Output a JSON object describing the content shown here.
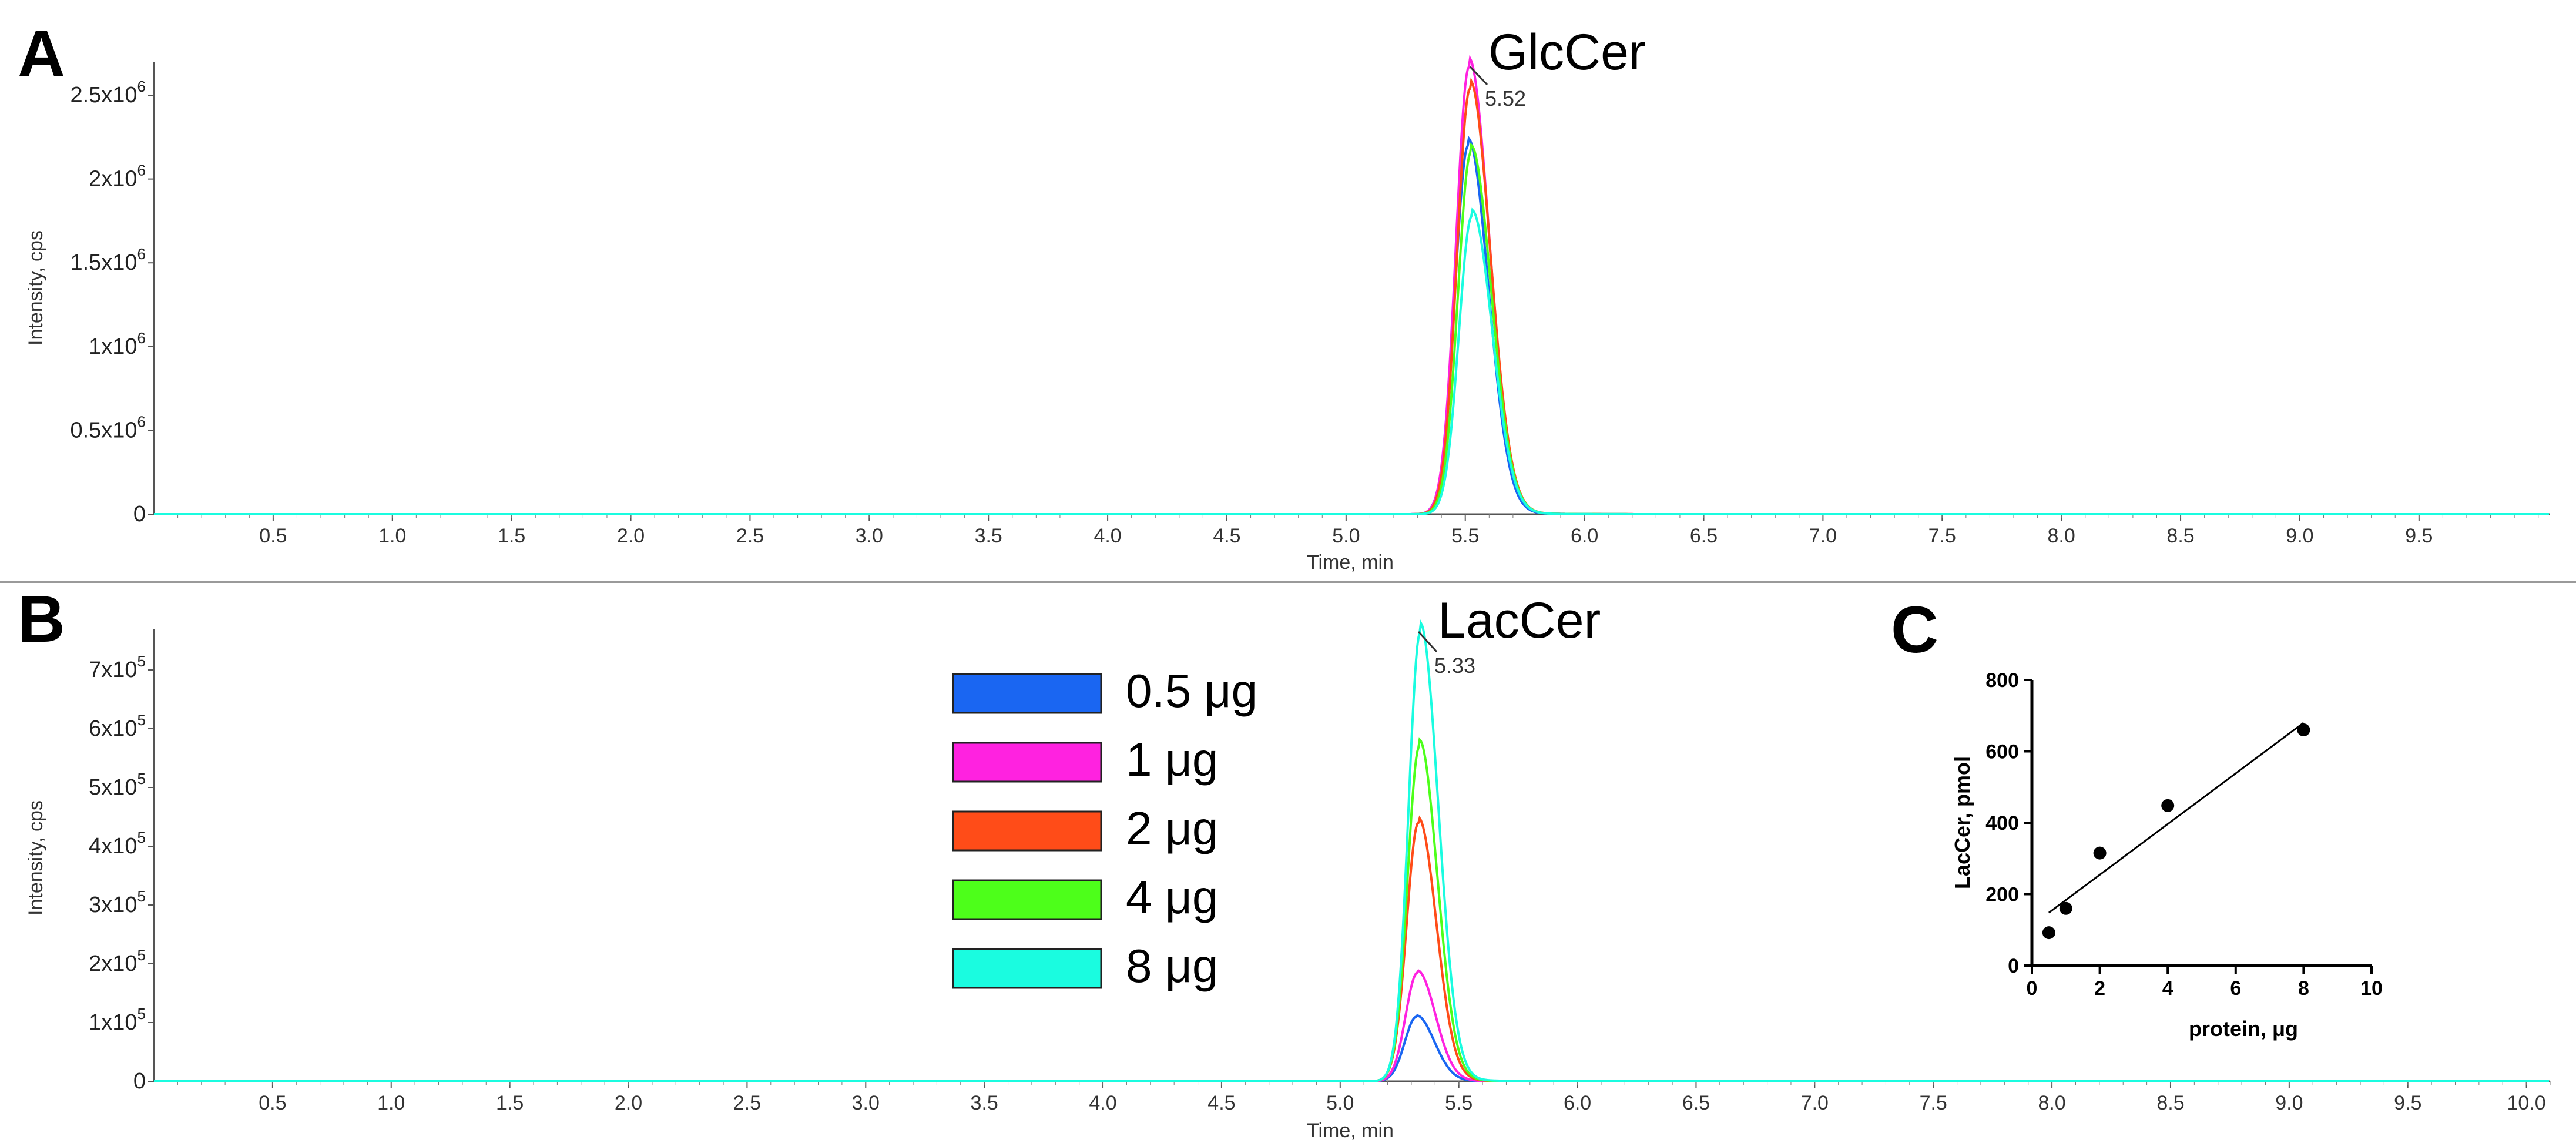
{
  "chart_data": [
    {
      "panel_label": "A",
      "type": "line",
      "title": "",
      "xlabel": "Time, min",
      "ylabel": "Intensity, cps",
      "xlim": [
        0,
        10.05
      ],
      "ylim": [
        0,
        2700000
      ],
      "x_ticks": [
        "0.5",
        "1.0",
        "1.5",
        "2.0",
        "2.5",
        "3.0",
        "3.5",
        "4.0",
        "4.5",
        "5.0",
        "5.5",
        "6.0",
        "6.5",
        "7.0",
        "7.5",
        "8.0",
        "8.5",
        "9.0",
        "9.5"
      ],
      "y_ticks": [
        {
          "value": 0,
          "base": "0",
          "exp": ""
        },
        {
          "value": 500000,
          "base": "0.5x10",
          "exp": "6"
        },
        {
          "value": 1000000,
          "base": "1x10",
          "exp": "6"
        },
        {
          "value": 1500000,
          "base": "1.5x10",
          "exp": "6"
        },
        {
          "value": 2000000,
          "base": "2x10",
          "exp": "6"
        },
        {
          "value": 2500000,
          "base": "2.5x10",
          "exp": "6"
        }
      ],
      "peak": {
        "name": "GlcCer",
        "rt": "5.52",
        "x": 5.52
      },
      "series": [
        {
          "name": "0.5 μg",
          "apex": 2200000
        },
        {
          "name": "1 μg",
          "apex": 2670000
        },
        {
          "name": "2 μg",
          "apex": 2540000
        },
        {
          "name": "4 μg",
          "apex": 2160000
        },
        {
          "name": "8 μg",
          "apex": 1780000
        }
      ]
    },
    {
      "panel_label": "B",
      "type": "line",
      "title": "",
      "xlabel": "Time, min",
      "ylabel": "Intensity, cps",
      "xlim": [
        0,
        10.1
      ],
      "ylim": [
        0,
        770000
      ],
      "x_ticks": [
        "0.5",
        "1.0",
        "1.5",
        "2.0",
        "2.5",
        "3.0",
        "3.5",
        "4.0",
        "4.5",
        "5.0",
        "5.5",
        "6.0",
        "6.5",
        "7.0",
        "7.5",
        "8.0",
        "8.5",
        "9.0",
        "9.5",
        "10.0"
      ],
      "y_ticks": [
        {
          "value": 0,
          "base": "0",
          "exp": ""
        },
        {
          "value": 100000,
          "base": "1x10",
          "exp": "5"
        },
        {
          "value": 200000,
          "base": "2x10",
          "exp": "5"
        },
        {
          "value": 300000,
          "base": "3x10",
          "exp": "5"
        },
        {
          "value": 400000,
          "base": "4x10",
          "exp": "5"
        },
        {
          "value": 500000,
          "base": "5x10",
          "exp": "5"
        },
        {
          "value": 600000,
          "base": "6x10",
          "exp": "5"
        },
        {
          "value": 700000,
          "base": "7x10",
          "exp": "5"
        }
      ],
      "peak": {
        "name": "LacCer",
        "rt": "5.33",
        "x": 5.33
      },
      "series": [
        {
          "name": "0.5 μg",
          "apex": 110000
        },
        {
          "name": "1 μg",
          "apex": 185000
        },
        {
          "name": "2 μg",
          "apex": 440000
        },
        {
          "name": "4 μg",
          "apex": 570000
        },
        {
          "name": "8 μg",
          "apex": 765000
        }
      ]
    },
    {
      "panel_label": "C",
      "type": "scatter",
      "title": "",
      "xlabel": "protein, μg",
      "ylabel": "LacCer, pmol",
      "xlim": [
        0,
        10
      ],
      "ylim": [
        0,
        800
      ],
      "x_ticks": [
        "0",
        "2",
        "4",
        "6",
        "8",
        "10"
      ],
      "y_ticks": [
        "0",
        "200",
        "400",
        "600",
        "800"
      ],
      "points": [
        {
          "x": 0.5,
          "y": 92
        },
        {
          "x": 1,
          "y": 160
        },
        {
          "x": 2,
          "y": 315
        },
        {
          "x": 4,
          "y": 448
        },
        {
          "x": 8,
          "y": 660
        }
      ],
      "fit_line": {
        "x": [
          0.5,
          8
        ],
        "y": [
          148,
          680
        ]
      }
    }
  ],
  "legend": [
    {
      "label": "0.5 μg",
      "color": "#1a66f2"
    },
    {
      "label": "1 μg",
      "color": "#ff22e0"
    },
    {
      "label": "2 μg",
      "color": "#ff4c18"
    },
    {
      "label": "4 μg",
      "color": "#4dff1a"
    },
    {
      "label": "8 μg",
      "color": "#1afce0"
    }
  ]
}
